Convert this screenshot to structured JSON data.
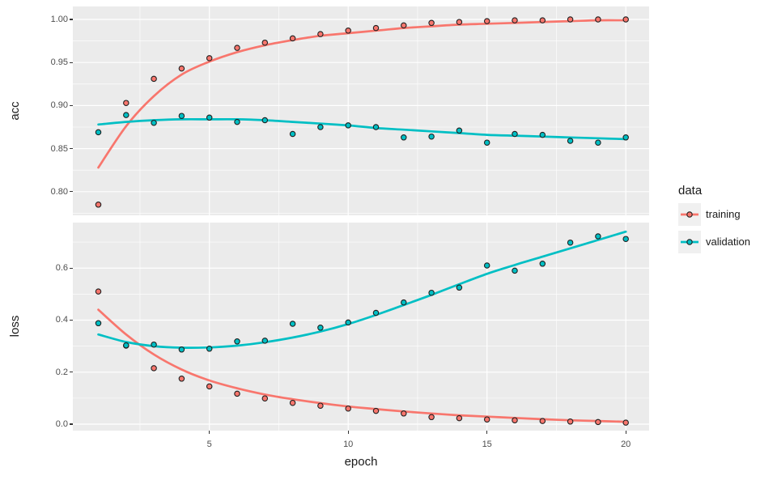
{
  "colors": {
    "training": "#F8766D",
    "validation": "#00BFC4",
    "panel_background": "#EBEBEB",
    "gridline": "#FFFFFF",
    "tick_text": "#4D4D4D",
    "axis_title_text": "#1A1A1A",
    "point_outline": "#1F1F1F",
    "legend_key_background": "#F0F0F0"
  },
  "axes": {
    "x": {
      "label": "epoch",
      "ticks": [
        5,
        10,
        15,
        20
      ],
      "tick_labels": [
        "5",
        "10",
        "15",
        "20"
      ],
      "minor": [
        2.5,
        7.5,
        12.5,
        17.5
      ],
      "range": [
        0.05,
        20.95
      ]
    },
    "acc_y": {
      "label": "acc",
      "ticks": [
        1.0,
        0.95,
        0.9,
        0.85,
        0.8
      ],
      "tick_labels": [
        "1.00",
        "0.95",
        "0.90",
        "0.85",
        "0.80"
      ],
      "minor": [
        0.975,
        0.925,
        0.875,
        0.825,
        0.775
      ]
    },
    "loss_y": {
      "label": "loss",
      "ticks": [
        0.6,
        0.4,
        0.2,
        0.0
      ],
      "tick_labels": [
        "0.6",
        "0.4",
        "0.2",
        "0.0"
      ],
      "minor": [
        0.7,
        0.5,
        0.3,
        0.1
      ]
    }
  },
  "legend": {
    "title": "data",
    "entries": [
      {
        "label": "training",
        "color": "#F8766D"
      },
      {
        "label": "validation",
        "color": "#00BFC4"
      }
    ]
  },
  "chart_data": [
    {
      "type": "scatter",
      "facet": "acc",
      "xlabel": "epoch",
      "ylabel": "acc",
      "x": [
        1,
        2,
        3,
        4,
        5,
        6,
        7,
        8,
        9,
        10,
        11,
        12,
        13,
        14,
        15,
        16,
        17,
        18,
        19,
        20
      ],
      "ylim": [
        0.773,
        1.015
      ],
      "yticks": [
        0.8,
        0.85,
        0.9,
        0.95,
        1.0
      ],
      "grid": true,
      "legend_position": "right",
      "series": [
        {
          "name": "training",
          "color": "#F8766D",
          "points": [
            0.785,
            0.903,
            0.931,
            0.943,
            0.955,
            0.967,
            0.973,
            0.978,
            0.983,
            0.987,
            0.99,
            0.993,
            0.996,
            0.997,
            0.998,
            0.999,
            0.999,
            1.0,
            1.0,
            1.0
          ],
          "smooth": [
            0.828,
            0.876,
            0.911,
            0.936,
            0.951,
            0.962,
            0.97,
            0.976,
            0.981,
            0.984,
            0.987,
            0.99,
            0.992,
            0.994,
            0.995,
            0.996,
            0.997,
            0.998,
            0.999,
            0.999
          ]
        },
        {
          "name": "validation",
          "color": "#00BFC4",
          "points": [
            0.869,
            0.889,
            0.88,
            0.888,
            0.886,
            0.881,
            0.883,
            0.867,
            0.875,
            0.877,
            0.875,
            0.863,
            0.864,
            0.871,
            0.857,
            0.867,
            0.866,
            0.859,
            0.857,
            0.863
          ],
          "smooth": [
            0.878,
            0.881,
            0.883,
            0.884,
            0.884,
            0.884,
            0.883,
            0.881,
            0.879,
            0.877,
            0.874,
            0.872,
            0.87,
            0.868,
            0.866,
            0.865,
            0.864,
            0.863,
            0.862,
            0.861
          ]
        }
      ]
    },
    {
      "type": "scatter",
      "facet": "loss",
      "xlabel": "epoch",
      "ylabel": "loss",
      "x": [
        1,
        2,
        3,
        4,
        5,
        6,
        7,
        8,
        9,
        10,
        11,
        12,
        13,
        14,
        15,
        16,
        17,
        18,
        19,
        20
      ],
      "ylim": [
        -0.025,
        0.775
      ],
      "yticks": [
        0.0,
        0.2,
        0.4,
        0.6
      ],
      "grid": true,
      "legend_position": "right",
      "series": [
        {
          "name": "training",
          "color": "#F8766D",
          "points": [
            0.51,
            0.302,
            0.215,
            0.175,
            0.145,
            0.117,
            0.099,
            0.082,
            0.071,
            0.06,
            0.051,
            0.041,
            0.027,
            0.023,
            0.018,
            0.015,
            0.012,
            0.01,
            0.008,
            0.006
          ],
          "smooth": [
            0.44,
            0.345,
            0.268,
            0.21,
            0.168,
            0.138,
            0.114,
            0.096,
            0.081,
            0.068,
            0.058,
            0.049,
            0.041,
            0.034,
            0.029,
            0.024,
            0.019,
            0.015,
            0.012,
            0.009
          ]
        },
        {
          "name": "validation",
          "color": "#00BFC4",
          "points": [
            0.388,
            0.303,
            0.306,
            0.287,
            0.29,
            0.318,
            0.321,
            0.386,
            0.371,
            0.391,
            0.428,
            0.468,
            0.505,
            0.525,
            0.61,
            0.59,
            0.617,
            0.698,
            0.722,
            0.712
          ],
          "smooth": [
            0.345,
            0.316,
            0.3,
            0.294,
            0.295,
            0.302,
            0.315,
            0.333,
            0.356,
            0.385,
            0.42,
            0.458,
            0.497,
            0.538,
            0.578,
            0.612,
            0.644,
            0.676,
            0.708,
            0.74
          ]
        }
      ]
    }
  ]
}
